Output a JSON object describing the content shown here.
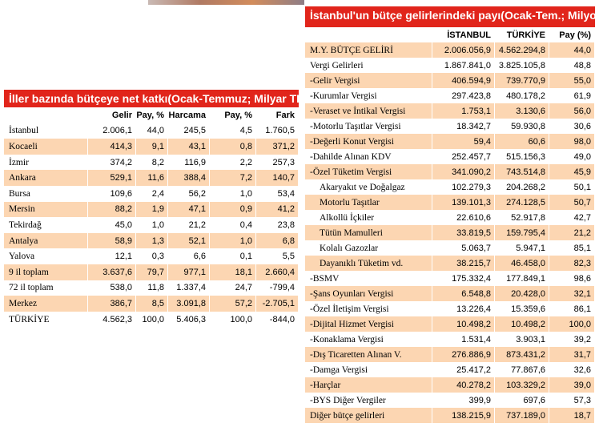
{
  "left_table": {
    "title": "İller bazında bütçeye net katkı",
    "subtitle": "(Ocak-Temmuz; Milyar TL)",
    "columns": [
      "Gelir",
      "Pay, %",
      "Harcama",
      "Pay, %",
      "Fark"
    ],
    "rows": [
      [
        "İstanbul",
        "2.006,1",
        "44,0",
        "245,5",
        "4,5",
        "1.760,5"
      ],
      [
        "Kocaeli",
        "414,3",
        "9,1",
        "43,1",
        "0,8",
        "371,2"
      ],
      [
        "İzmir",
        "374,2",
        "8,2",
        "116,9",
        "2,2",
        "257,3"
      ],
      [
        "Ankara",
        "529,1",
        "11,6",
        "388,4",
        "7,2",
        "140,7"
      ],
      [
        "Bursa",
        "109,6",
        "2,4",
        "56,2",
        "1,0",
        "53,4"
      ],
      [
        "Mersin",
        "88,2",
        "1,9",
        "47,1",
        "0,9",
        "41,2"
      ],
      [
        "Tekirdağ",
        "45,0",
        "1,0",
        "21,2",
        "0,4",
        "23,8"
      ],
      [
        "Antalya",
        "58,9",
        "1,3",
        "52,1",
        "1,0",
        "6,8"
      ],
      [
        "Yalova",
        "12,1",
        "0,3",
        "6,6",
        "0,1",
        "5,5"
      ],
      [
        "9 il toplam",
        "3.637,6",
        "79,7",
        "977,1",
        "18,1",
        "2.660,4"
      ],
      [
        "72 il toplam",
        "538,0",
        "11,8",
        "1.337,4",
        "24,7",
        "-799,4"
      ],
      [
        "Merkez",
        "386,7",
        "8,5",
        "3.091,8",
        "57,2",
        "-2.705,1"
      ],
      [
        "TÜRKİYE",
        "4.562,3",
        "100,0",
        "5.406,3",
        "100,0",
        "-844,0"
      ]
    ]
  },
  "right_table": {
    "title": "İstanbul'un bütçe gelirlerindeki payı",
    "subtitle": "(Ocak-Tem.; Milyon TL)",
    "columns": [
      "İSTANBUL",
      "TÜRKİYE",
      "Pay (%)"
    ],
    "rows": [
      [
        "M.Y. BÜTÇE GELİRİ",
        "2.006.056,9",
        "4.562.294,8",
        "44,0"
      ],
      [
        "Vergi Gelirleri",
        "1.867.841,0",
        "3.825.105,8",
        "48,8"
      ],
      [
        "-Gelir Vergisi",
        "406.594,9",
        "739.770,9",
        "55,0"
      ],
      [
        "-Kurumlar Vergisi",
        "297.423,8",
        "480.178,2",
        "61,9"
      ],
      [
        "-Veraset ve İntikal Vergisi",
        "1.753,1",
        "3.130,6",
        "56,0"
      ],
      [
        "-Motorlu Taşıtlar Vergisi",
        "18.342,7",
        "59.930,8",
        "30,6"
      ],
      [
        "-Değerli Konut Vergisi",
        "59,4",
        "60,6",
        "98,0"
      ],
      [
        "-Dahilde Alınan KDV",
        "252.457,7",
        "515.156,3",
        "49,0"
      ],
      [
        "-Özel Tüketim Vergisi",
        "341.090,2",
        "743.514,8",
        "45,9"
      ],
      [
        "Akaryakıt ve Doğalgaz",
        "102.279,3",
        "204.268,2",
        "50,1"
      ],
      [
        "Motorlu Taşıtlar",
        "139.101,3",
        "274.128,5",
        "50,7"
      ],
      [
        "Alkollü İçkiler",
        "22.610,6",
        "52.917,8",
        "42,7"
      ],
      [
        "Tütün Mamulleri",
        "33.819,5",
        "159.795,4",
        "21,2"
      ],
      [
        "Kolalı Gazozlar",
        "5.063,7",
        "5.947,1",
        "85,1"
      ],
      [
        "Dayanıklı Tüketim vd.",
        "38.215,7",
        "46.458,0",
        "82,3"
      ],
      [
        "-BSMV",
        "175.332,4",
        "177.849,1",
        "98,6"
      ],
      [
        "-Şans Oyunları Vergisi",
        "6.548,8",
        "20.428,0",
        "32,1"
      ],
      [
        "-Özel İletişim Vergisi",
        "13.226,4",
        "15.359,6",
        "86,1"
      ],
      [
        "-Dijital Hizmet Vergisi",
        "10.498,2",
        "10.498,2",
        "100,0"
      ],
      [
        "-Konaklama Vergisi",
        "1.531,4",
        "3.903,1",
        "39,2"
      ],
      [
        "-Dış Ticaretten Alınan V.",
        "276.886,9",
        "873.431,2",
        "31,7"
      ],
      [
        "-Damga Vergisi",
        "25.417,2",
        "77.867,6",
        "32,6"
      ],
      [
        "-Harçlar",
        "40.278,2",
        "103.329,2",
        "39,0"
      ],
      [
        "-BYS Diğer Vergiler",
        "399,9",
        "697,6",
        "57,3"
      ],
      [
        "Diğer bütçe gelirleri",
        "138.215,9",
        "737.189,0",
        "18,7"
      ]
    ]
  }
}
